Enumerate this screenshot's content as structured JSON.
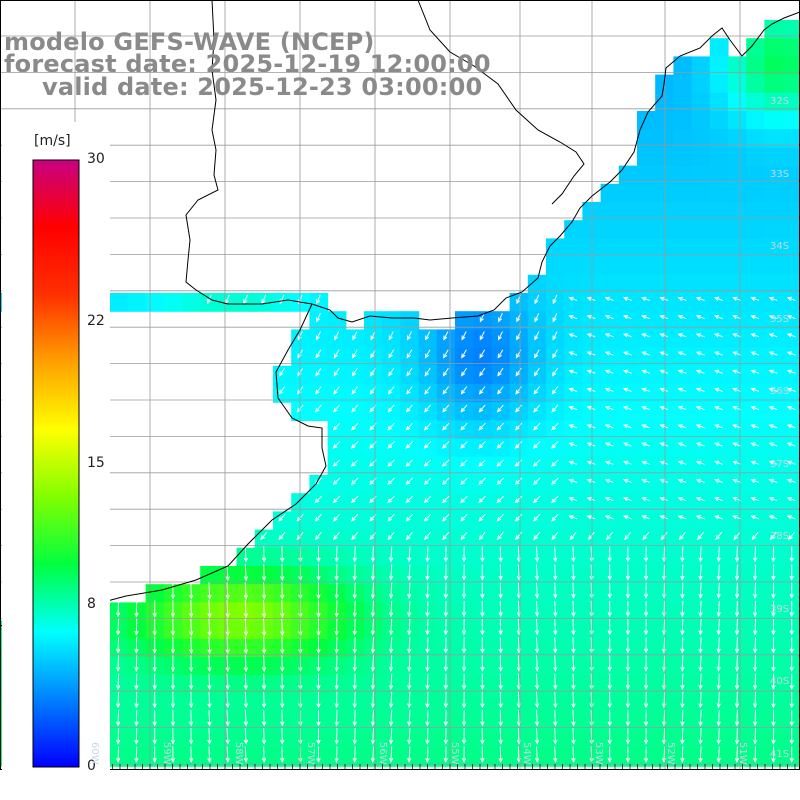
{
  "title": {
    "line1": "modelo GEFS-WAVE (NCEP)",
    "line2": "forecast date: 2025-12-19 12:00:00",
    "line3": "valid date: 2025-12-23 03:00:00"
  },
  "colorbar": {
    "unit": "[m/s]",
    "ticks": [
      "30",
      "22",
      "15",
      "8",
      "0"
    ],
    "tick_values": [
      30,
      22,
      15,
      8,
      0
    ],
    "range": [
      0,
      30
    ],
    "colors": [
      "#0000ff",
      "#0080ff",
      "#00ffff",
      "#00ff40",
      "#80ff00",
      "#ffff00",
      "#ffa000",
      "#ff3000",
      "#ff0000",
      "#c80080"
    ]
  },
  "map": {
    "lat_labels": [
      "32S",
      "33S",
      "34S",
      "35S",
      "36S",
      "37S",
      "38S",
      "39S",
      "40S",
      "41S"
    ],
    "lon_labels": [
      "60W",
      "59W",
      "58W",
      "57W",
      "56W",
      "55W",
      "54W",
      "53W",
      "52W",
      "51W"
    ],
    "land_color": "#ffffff",
    "grid_color": "#9a9a9a",
    "coast_color": "#000000",
    "arrow_color": "#ffffff"
  }
}
